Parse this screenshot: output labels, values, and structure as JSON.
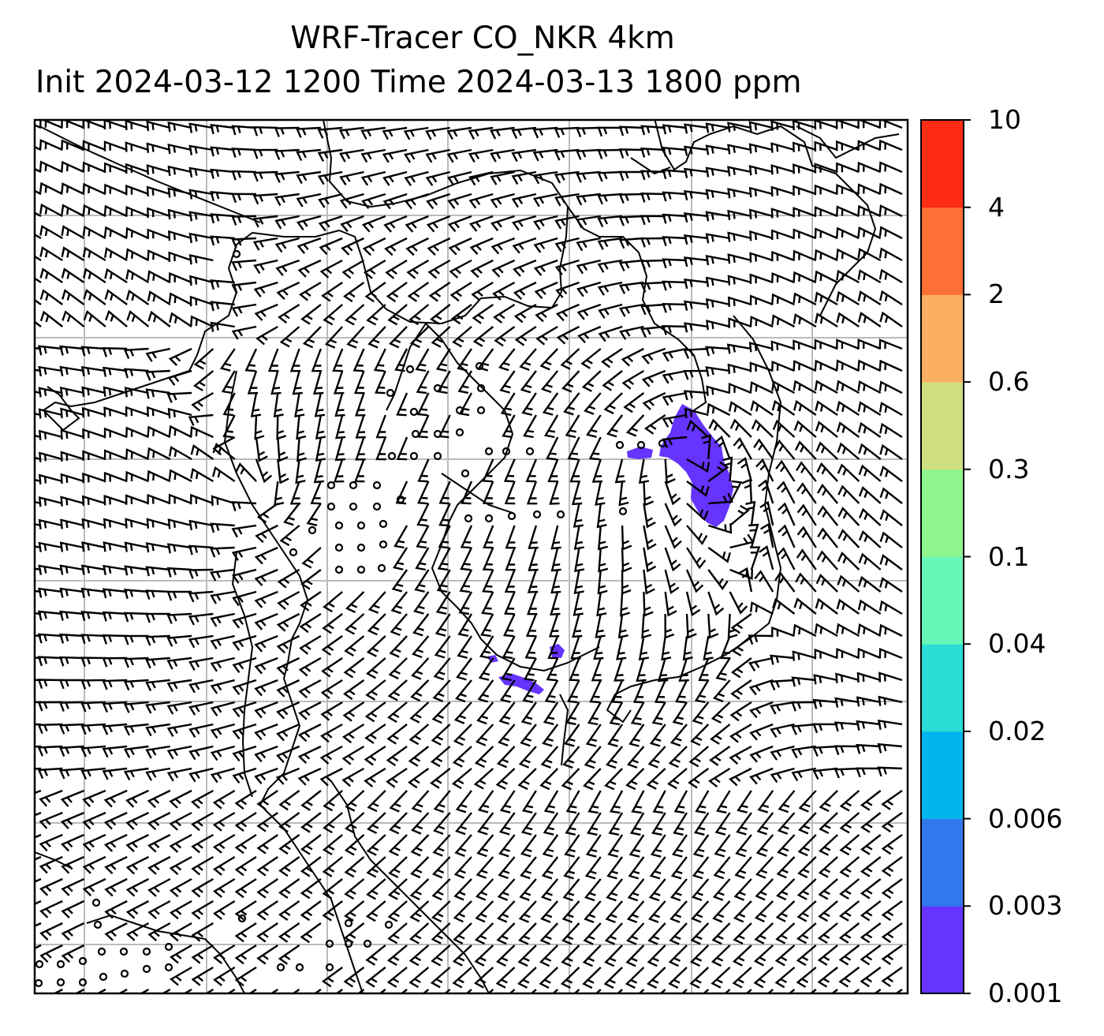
{
  "title_line1": "WRF-Tracer CO_NKR 4km",
  "title_line2": "Init 2024-03-12 1200 Time 2024-03-13 1800 ppm",
  "colorbar": {
    "levels": [
      "0.001",
      "0.003",
      "0.006",
      "0.02",
      "0.04",
      "0.1",
      "0.3",
      "0.6",
      "2",
      "4",
      "10"
    ],
    "colors": [
      "#6633ff",
      "#3377ee",
      "#00b4ec",
      "#2adcd6",
      "#66f6b5",
      "#8ef58e",
      "#d0df80",
      "#fbaf60",
      "#fe7035",
      "#fe2c14"
    ]
  },
  "map": {
    "tracer_color": "#6633ff",
    "gridline_color": "#bbbbbb",
    "barb_color": "#000000"
  }
}
